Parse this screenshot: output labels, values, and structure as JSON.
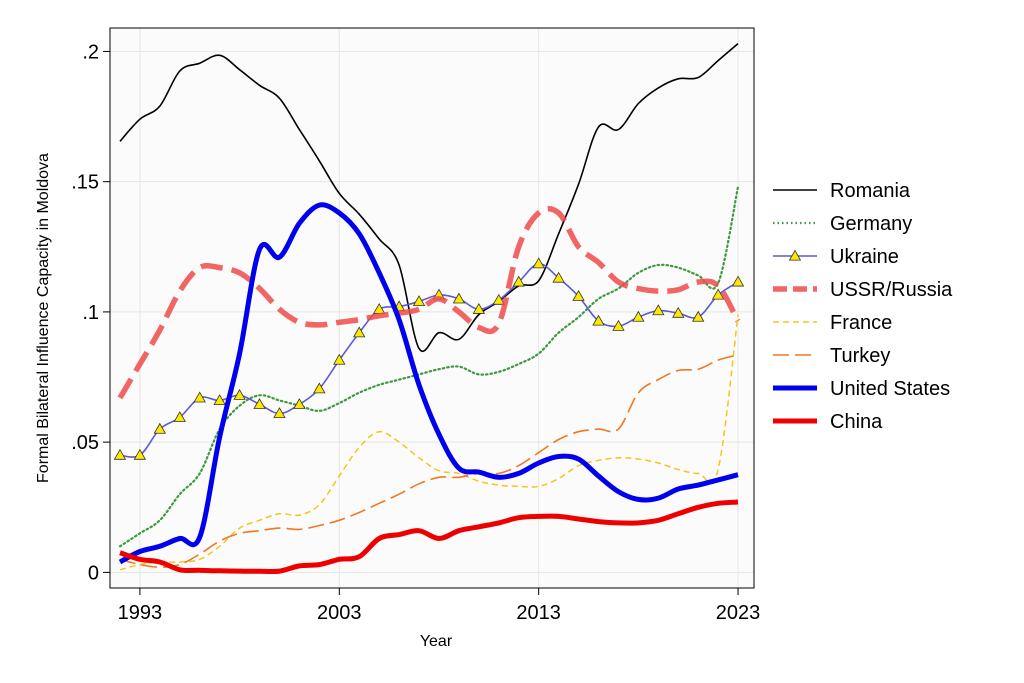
{
  "chart_data": {
    "type": "line",
    "title": "",
    "xlabel": "Year",
    "ylabel": "Formal Bilateral Influence Capacity in Moldova",
    "xlim": [
      1991.5,
      2023.8
    ],
    "ylim": [
      -0.006,
      0.209
    ],
    "x_ticks": [
      1993,
      2003,
      2013,
      2023
    ],
    "x_tick_labels": [
      "1993",
      "2003",
      "2013",
      "2023"
    ],
    "y_ticks": [
      0,
      0.05,
      0.1,
      0.15,
      0.2
    ],
    "y_tick_labels": [
      "0",
      ".05",
      ".1",
      ".15",
      ".2"
    ],
    "grid": true,
    "legend_position": "right",
    "x": [
      1992,
      1993,
      1994,
      1995,
      1996,
      1997,
      1998,
      1999,
      2000,
      2001,
      2002,
      2003,
      2004,
      2005,
      2006,
      2007,
      2008,
      2009,
      2010,
      2011,
      2012,
      2013,
      2014,
      2015,
      2016,
      2017,
      2018,
      2019,
      2020,
      2021,
      2022,
      2023
    ],
    "series": [
      {
        "name": "Romania",
        "color": "#000000",
        "style": "solid-thin",
        "values": [
          0.1655,
          0.174,
          0.179,
          0.1925,
          0.1955,
          0.1985,
          0.193,
          0.187,
          0.182,
          0.17,
          0.158,
          0.1455,
          0.1375,
          0.128,
          0.118,
          0.086,
          0.092,
          0.0895,
          0.099,
          0.104,
          0.11,
          0.112,
          0.13,
          0.149,
          0.171,
          0.17,
          0.18,
          0.186,
          0.1895,
          0.19,
          0.1965,
          0.203
        ]
      },
      {
        "name": "Germany",
        "color": "#3d9a3d",
        "style": "dotted",
        "values": [
          0.01,
          0.015,
          0.02,
          0.03,
          0.038,
          0.055,
          0.064,
          0.068,
          0.066,
          0.064,
          0.062,
          0.065,
          0.069,
          0.072,
          0.074,
          0.076,
          0.078,
          0.079,
          0.076,
          0.077,
          0.08,
          0.084,
          0.092,
          0.098,
          0.105,
          0.109,
          0.115,
          0.118,
          0.117,
          0.114,
          0.111,
          0.148
        ]
      },
      {
        "name": "Ukraine",
        "color": "#5b5bd6",
        "style": "triangles",
        "values": [
          0.045,
          0.045,
          0.055,
          0.0595,
          0.067,
          0.066,
          0.068,
          0.0645,
          0.061,
          0.0645,
          0.0705,
          0.0815,
          0.092,
          0.101,
          0.102,
          0.104,
          0.1065,
          0.105,
          0.101,
          0.1045,
          0.1115,
          0.1185,
          0.113,
          0.106,
          0.0965,
          0.0945,
          0.098,
          0.1005,
          0.0995,
          0.098,
          0.1065,
          0.1115
        ]
      },
      {
        "name": "USSR/Russia",
        "color": "#f04a4a",
        "style": "dash-thick",
        "values": [
          0.067,
          0.08,
          0.093,
          0.108,
          0.117,
          0.117,
          0.115,
          0.109,
          0.101,
          0.096,
          0.095,
          0.096,
          0.097,
          0.0985,
          0.0995,
          0.101,
          0.105,
          0.1,
          0.094,
          0.0955,
          0.125,
          0.138,
          0.138,
          0.125,
          0.119,
          0.1115,
          0.109,
          0.108,
          0.1085,
          0.1115,
          0.11,
          0.0965
        ]
      },
      {
        "name": "France",
        "color": "#f5c518",
        "style": "short-dash",
        "values": [
          0.001,
          0.003,
          0.004,
          0.004,
          0.005,
          0.01,
          0.017,
          0.02,
          0.0225,
          0.022,
          0.026,
          0.037,
          0.048,
          0.054,
          0.05,
          0.044,
          0.039,
          0.038,
          0.035,
          0.0335,
          0.033,
          0.033,
          0.036,
          0.041,
          0.043,
          0.044,
          0.0435,
          0.042,
          0.0395,
          0.038,
          0.0395,
          0.099
        ]
      },
      {
        "name": "Turkey",
        "color": "#f07820",
        "style": "long-dash",
        "values": [
          0.005,
          0.003,
          0.002,
          0.003,
          0.007,
          0.012,
          0.015,
          0.016,
          0.017,
          0.0165,
          0.018,
          0.02,
          0.023,
          0.0265,
          0.03,
          0.034,
          0.0365,
          0.0365,
          0.038,
          0.038,
          0.041,
          0.046,
          0.051,
          0.054,
          0.055,
          0.055,
          0.069,
          0.074,
          0.0775,
          0.078,
          0.0815,
          0.0835
        ]
      },
      {
        "name": "United States",
        "color": "#0000ee",
        "style": "solid-thick",
        "values": [
          0.004,
          0.008,
          0.01,
          0.013,
          0.0135,
          0.052,
          0.084,
          0.124,
          0.121,
          0.134,
          0.141,
          0.138,
          0.13,
          0.115,
          0.097,
          0.072,
          0.053,
          0.04,
          0.0385,
          0.0365,
          0.038,
          0.042,
          0.0445,
          0.0435,
          0.037,
          0.031,
          0.028,
          0.0285,
          0.032,
          0.0335,
          0.0355,
          0.0375
        ]
      },
      {
        "name": "China",
        "color": "#ee0000",
        "style": "solid-thick",
        "values": [
          0.0075,
          0.005,
          0.004,
          0.001,
          0.0008,
          0.0006,
          0.0005,
          0.0004,
          0.0005,
          0.0025,
          0.003,
          0.005,
          0.006,
          0.013,
          0.0145,
          0.016,
          0.013,
          0.016,
          0.0175,
          0.019,
          0.021,
          0.0215,
          0.0215,
          0.0205,
          0.0195,
          0.019,
          0.019,
          0.02,
          0.0225,
          0.025,
          0.0265,
          0.027
        ]
      }
    ]
  }
}
